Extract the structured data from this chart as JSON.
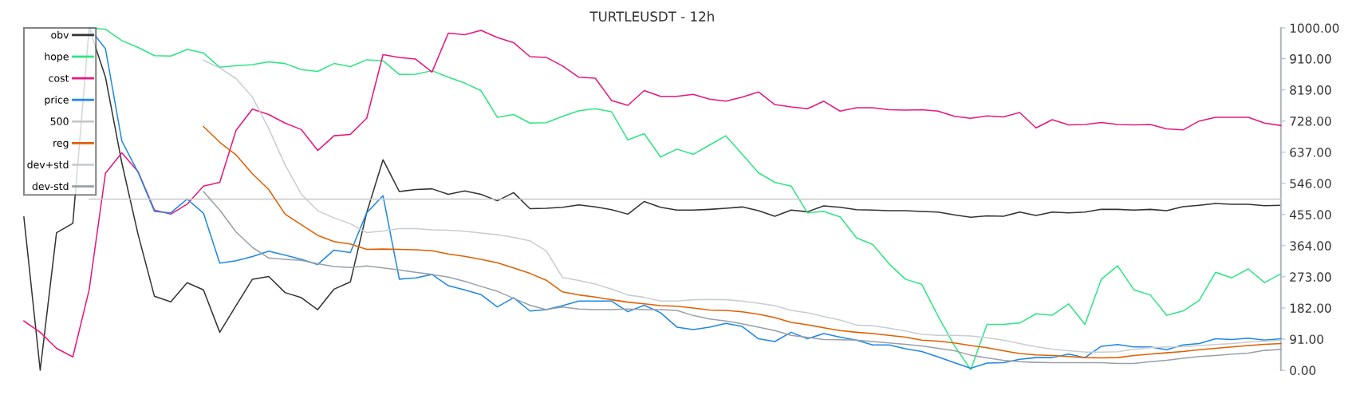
{
  "chart_data": {
    "type": "line",
    "title": "TURTLEUSDT - 12h",
    "categories": [
      null,
      null,
      null,
      null,
      null,
      null,
      null,
      null,
      null,
      null,
      null,
      null,
      null,
      null,
      null,
      null,
      null,
      null,
      null,
      null,
      null,
      null,
      null,
      null,
      null,
      null,
      null,
      null,
      null,
      null,
      null,
      null,
      null,
      null,
      null,
      null,
      null,
      null,
      null,
      null,
      null,
      null,
      null,
      null,
      null,
      null,
      null,
      null,
      null,
      null,
      null,
      null,
      null,
      null,
      null,
      null,
      null,
      null,
      null,
      null,
      null,
      null,
      null,
      null,
      null,
      null,
      null,
      null,
      null,
      null,
      null,
      null,
      null,
      null,
      null,
      null,
      null,
      null
    ],
    "series": [
      {
        "name": "obv",
        "color": "#333333",
        "values": [
          448,
          0,
          402,
          429,
          1000,
          856,
          606,
          396,
          216,
          200,
          256,
          235,
          111,
          189,
          266,
          274,
          227,
          212,
          177,
          237,
          258,
          460,
          615,
          522,
          528,
          530,
          514,
          524,
          514,
          495,
          519,
          472,
          473,
          476,
          483,
          477,
          469,
          456,
          493,
          476,
          468,
          468,
          470,
          473,
          477,
          466,
          450,
          468,
          463,
          480,
          476,
          469,
          468,
          466,
          466,
          464,
          462,
          454,
          447,
          451,
          450,
          462,
          452,
          462,
          460,
          462,
          470,
          470,
          468,
          470,
          466,
          478,
          482,
          487,
          485,
          485,
          481,
          482
        ]
      },
      {
        "name": "hope",
        "color": "#2ee681",
        "values": [
          null,
          null,
          null,
          null,
          1000,
          996,
          963,
          943,
          919,
          918,
          937,
          927,
          885,
          890,
          893,
          901,
          896,
          878,
          873,
          896,
          887,
          907,
          904,
          864,
          865,
          875,
          856,
          839,
          817,
          739,
          747,
          722,
          723,
          742,
          758,
          764,
          755,
          673,
          691,
          623,
          646,
          631,
          658,
          685,
          631,
          577,
          549,
          538,
          460,
          464,
          448,
          387,
          367,
          311,
          266,
          251,
          158,
          72,
          2,
          134,
          134,
          138,
          165,
          161,
          194,
          134,
          266,
          305,
          235,
          220,
          161,
          173,
          204,
          286,
          270,
          296,
          256,
          282
        ]
      },
      {
        "name": "cost",
        "color": "#e8177f",
        "values": [
          144,
          111,
          64,
          39,
          235,
          576,
          635,
          580,
          468,
          456,
          485,
          538,
          549,
          701,
          763,
          747,
          722,
          703,
          642,
          685,
          689,
          736,
          922,
          914,
          909,
          871,
          985,
          980,
          993,
          972,
          957,
          916,
          914,
          889,
          856,
          853,
          788,
          774,
          817,
          800,
          800,
          806,
          792,
          786,
          798,
          813,
          776,
          769,
          764,
          786,
          757,
          767,
          767,
          761,
          760,
          761,
          757,
          742,
          736,
          743,
          740,
          753,
          708,
          732,
          717,
          718,
          724,
          718,
          717,
          718,
          705,
          702,
          728,
          739,
          739,
          739,
          722,
          715
        ]
      },
      {
        "name": "price",
        "color": "#1e88e5",
        "values": [
          null,
          null,
          null,
          null,
          1000,
          939,
          670,
          578,
          464,
          460,
          500,
          459,
          313,
          320,
          332,
          348,
          336,
          324,
          309,
          351,
          344,
          460,
          510,
          266,
          270,
          280,
          247,
          235,
          221,
          185,
          212,
          173,
          177,
          189,
          202,
          202,
          202,
          171,
          190,
          168,
          126,
          119,
          126,
          137,
          128,
          92,
          84,
          111,
          92,
          107,
          97,
          88,
          74,
          74,
          63,
          55,
          39,
          22,
          6,
          21,
          22,
          32,
          37,
          37,
          47,
          37,
          70,
          75,
          68,
          68,
          60,
          74,
          78,
          92,
          90,
          94,
          88,
          92
        ]
      },
      {
        "name": "500",
        "color": "#c8c8c8",
        "values": [
          null,
          null,
          null,
          null,
          500,
          500,
          500,
          500,
          500,
          500,
          500,
          500,
          500,
          500,
          500,
          500,
          500,
          500,
          500,
          500,
          500,
          500,
          500,
          500,
          500,
          500,
          500,
          500,
          500,
          500,
          500,
          500,
          500,
          500,
          500,
          500,
          500,
          500,
          500,
          500,
          500,
          500,
          500,
          500,
          500,
          500,
          500,
          500,
          500,
          500,
          500,
          500,
          500,
          500,
          500,
          500,
          500,
          500,
          500,
          500,
          500,
          500,
          500,
          500,
          500,
          500,
          500,
          500,
          500,
          500,
          500,
          500,
          500,
          500,
          500,
          500,
          500,
          500
        ]
      },
      {
        "name": "reg",
        "color": "#e06000",
        "values": [
          null,
          null,
          null,
          null,
          null,
          null,
          null,
          null,
          null,
          null,
          null,
          712,
          666,
          629,
          574,
          528,
          456,
          425,
          394,
          376,
          369,
          353,
          354,
          353,
          352,
          349,
          340,
          333,
          324,
          314,
          299,
          283,
          263,
          229,
          220,
          214,
          206,
          199,
          194,
          189,
          187,
          182,
          176,
          175,
          171,
          164,
          154,
          140,
          133,
          124,
          116,
          111,
          107,
          102,
          97,
          88,
          85,
          80,
          72,
          66,
          57,
          49,
          45,
          43,
          40,
          37,
          36,
          37,
          43,
          47,
          51,
          55,
          60,
          64,
          68,
          72,
          76,
          78
        ]
      },
      {
        "name": "dev+std",
        "color": "#c8cdd2",
        "values": [
          null,
          null,
          null,
          null,
          null,
          null,
          null,
          null,
          null,
          null,
          null,
          906,
          883,
          852,
          798,
          706,
          600,
          514,
          466,
          445,
          428,
          402,
          407,
          414,
          414,
          410,
          409,
          406,
          401,
          396,
          388,
          378,
          349,
          271,
          262,
          252,
          237,
          220,
          213,
          202,
          202,
          206,
          207,
          206,
          202,
          196,
          189,
          175,
          168,
          157,
          147,
          132,
          130,
          123,
          115,
          105,
          102,
          102,
          100,
          95,
          88,
          78,
          69,
          62,
          57,
          53,
          53,
          54,
          61,
          66,
          68,
          69,
          72,
          75,
          78,
          82,
          85,
          88
        ]
      },
      {
        "name": "dev-std",
        "color": "#98a0a8",
        "values": [
          null,
          null,
          null,
          null,
          null,
          null,
          null,
          null,
          null,
          null,
          null,
          522,
          468,
          404,
          359,
          328,
          324,
          321,
          311,
          303,
          300,
          305,
          299,
          293,
          286,
          280,
          272,
          260,
          245,
          231,
          210,
          190,
          177,
          185,
          179,
          177,
          177,
          179,
          177,
          177,
          175,
          160,
          150,
          144,
          136,
          126,
          116,
          102,
          96,
          90,
          89,
          88,
          84,
          80,
          76,
          71,
          64,
          57,
          44,
          36,
          29,
          25,
          23,
          22,
          22,
          22,
          22,
          20,
          20,
          25,
          29,
          35,
          40,
          43,
          47,
          50,
          58,
          61
        ]
      }
    ],
    "ylim": [
      0,
      1000
    ],
    "yticks": [
      {
        "value": 0,
        "label": "0.00"
      },
      {
        "value": 91,
        "label": "91.00"
      },
      {
        "value": 182,
        "label": "182.00"
      },
      {
        "value": 273,
        "label": "273.00"
      },
      {
        "value": 364,
        "label": "364.00"
      },
      {
        "value": 455,
        "label": "455.00"
      },
      {
        "value": 546,
        "label": "546.00"
      },
      {
        "value": 637,
        "label": "637.00"
      },
      {
        "value": 728,
        "label": "728.00"
      },
      {
        "value": 819,
        "label": "819.00"
      },
      {
        "value": 910,
        "label": "910.00"
      },
      {
        "value": 1000,
        "label": "1000.00"
      }
    ],
    "tick_labels": "y",
    "grid": false,
    "legend": "top left",
    "marker": "none",
    "line_style": "solid"
  }
}
